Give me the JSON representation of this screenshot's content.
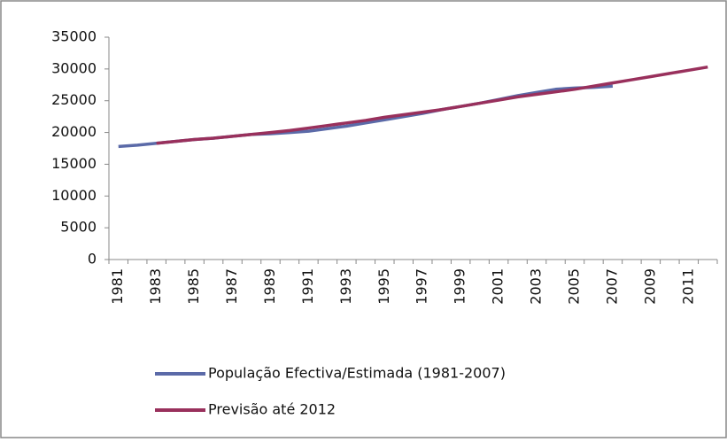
{
  "chart_data": {
    "type": "line",
    "categories": [
      "1981",
      null,
      "1983",
      null,
      "1985",
      null,
      "1987",
      null,
      "1989",
      null,
      "1991",
      null,
      "1993",
      null,
      "1995",
      null,
      "1997",
      null,
      "1999",
      null,
      "2001",
      null,
      "2003",
      null,
      "2005",
      null,
      "2007",
      null,
      "2009",
      null,
      "2011",
      null
    ],
    "series": [
      {
        "name": "População Efectiva/Estimada (1981-2007)",
        "color": "#5b6aa8",
        "values": [
          17800,
          18000,
          18300,
          18600,
          18900,
          19100,
          19400,
          19700,
          19800,
          20000,
          20200,
          20600,
          21000,
          21500,
          22000,
          22500,
          23000,
          23600,
          24100,
          24600,
          25200,
          25800,
          26300,
          26800,
          27000,
          27100,
          27300,
          null,
          null,
          null,
          null,
          null
        ]
      },
      {
        "name": "Previsão até 2012",
        "color": "#99305c",
        "values": [
          null,
          null,
          18300,
          18600,
          18900,
          19100,
          19400,
          19700,
          20000,
          20300,
          20700,
          21100,
          21500,
          21900,
          22400,
          22800,
          23200,
          23600,
          24100,
          24600,
          25100,
          25600,
          26000,
          26400,
          26800,
          27300,
          27800,
          28300,
          28800,
          29300,
          29800,
          30300
        ]
      }
    ],
    "ylim": [
      0,
      35000
    ],
    "yticks": [
      0,
      5000,
      10000,
      15000,
      20000,
      25000,
      30000,
      35000
    ],
    "grid": false
  }
}
